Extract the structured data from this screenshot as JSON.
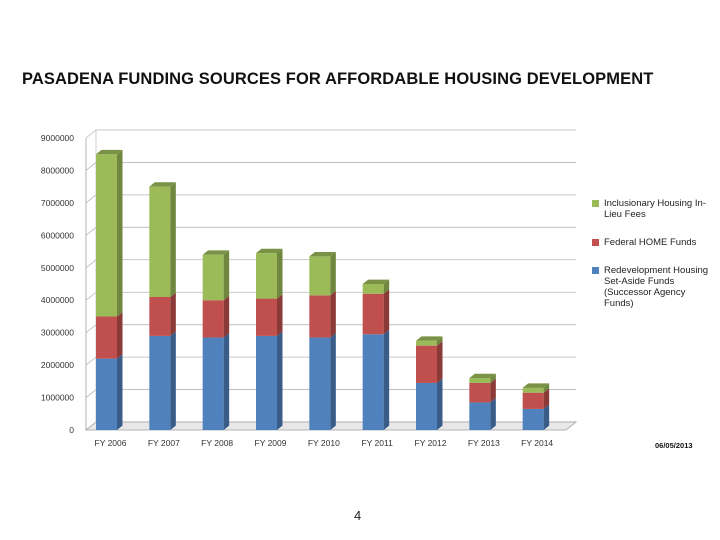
{
  "title": "PASADENA FUNDING SOURCES FOR AFFORDABLE HOUSING DEVELOPMENT",
  "date_label": "06/05/2013",
  "page_number": "4",
  "chart_data": {
    "type": "bar",
    "stacked": true,
    "three_d": true,
    "categories": [
      "FY 2006",
      "FY 2007",
      "FY 2008",
      "FY 2009",
      "FY 2010",
      "FY 2011",
      "FY 2012",
      "FY 2013",
      "FY 2014"
    ],
    "y_ticks": [
      "0",
      "1000000",
      "2000000",
      "3000000",
      "4000000",
      "5000000",
      "6000000",
      "7000000",
      "8000000",
      "9000000"
    ],
    "ylim": [
      0,
      9000000
    ],
    "grid": true,
    "legend_position": "right",
    "series": [
      {
        "name": "Redevelopment Housing Set-Aside Funds (Successor Agency Funds)",
        "color": "#4f81bd",
        "values": [
          2200000,
          2900000,
          2850000,
          2900000,
          2850000,
          2950000,
          1450000,
          850000,
          650000
        ]
      },
      {
        "name": "Federal HOME Funds",
        "color": "#c0504d",
        "values": [
          1300000,
          1200000,
          1150000,
          1150000,
          1300000,
          1250000,
          1150000,
          600000,
          500000
        ]
      },
      {
        "name": "Inclusionary Housing In-Lieu Fees",
        "color": "#9bbb59",
        "values": [
          5000000,
          3400000,
          1400000,
          1400000,
          1200000,
          300000,
          150000,
          150000,
          150000
        ]
      }
    ],
    "legend_lines": [
      [
        "Inclusionary Housing In-",
        "Lieu Fees"
      ],
      [
        "Federal HOME Funds"
      ],
      [
        "Redevelopment Housing",
        "Set-Aside Funds",
        "(Successor Agency Funds)"
      ]
    ]
  }
}
